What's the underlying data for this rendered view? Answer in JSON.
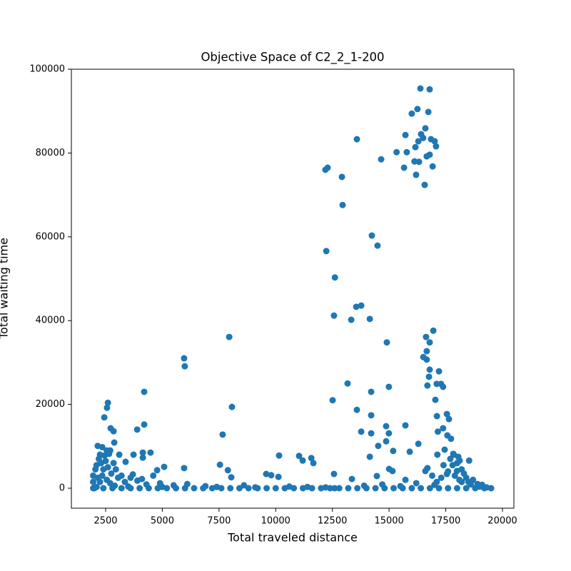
{
  "chart_data": {
    "type": "scatter",
    "title": "Objective Space of C2_2_1-200",
    "x_label": "Total traveled distance",
    "y_label": "Total waiting time",
    "color": "#1f77b4",
    "xlim": [
      989,
      20504
    ],
    "ylim": [
      -4770,
      100000
    ],
    "xticks": [
      2500,
      5000,
      7500,
      10000,
      12500,
      15000,
      17500,
      20000
    ],
    "yticks": [
      0,
      20000,
      40000,
      60000,
      80000,
      100000
    ],
    "x": [
      16380,
      16790,
      16250,
      16000,
      16730,
      16600,
      15720,
      16410,
      16500,
      16850,
      16290,
      17010,
      17070,
      16160,
      15330,
      15780,
      16660,
      16790,
      14650,
      16120,
      16320,
      16920,
      15660,
      16190,
      16570,
      13580,
      12290,
      12190,
      12920,
      12950,
      14240,
      14490,
      12230,
      12610,
      12570,
      13550,
      13770,
      13330,
      14150,
      14900,
      16630,
      16950,
      16790,
      16510,
      16660,
      16790,
      17200,
      17290,
      17100,
      17380,
      17040,
      14990,
      13170,
      12510,
      14210,
      13580,
      14210,
      14870,
      15720,
      13770,
      14210,
      14990,
      14520,
      14870,
      14150,
      15180,
      15910,
      16290,
      17110,
      17550,
      17640,
      17380,
      17570,
      17730,
      17150,
      17450,
      17830,
      18110,
      18530,
      17130,
      16690,
      16760,
      16660,
      5960,
      5990,
      7950,
      8070,
      7660,
      4200,
      4200,
      3890,
      2850,
      2720,
      2440,
      2600,
      2560,
      2880,
      2150,
      3730,
      4140,
      4480,
      4140,
      3100,
      3380,
      5080,
      4770,
      5960,
      7540,
      7890,
      8040,
      10150,
      11030,
      11190,
      11570,
      11660,
      9580,
      9800,
      10120,
      12570,
      13360,
      14460,
      15000,
      15150,
      15720,
      16600,
      16690,
      17550,
      17990,
      2000,
      2400,
      2800,
      3200,
      3600,
      4000,
      4400,
      4800,
      5200,
      5600,
      6000,
      6400,
      6800,
      7200,
      7600,
      8000,
      8400,
      8800,
      9200,
      9600,
      10000,
      10400,
      10800,
      11200,
      11600,
      12000,
      12400,
      12800,
      13200,
      13600,
      14000,
      14400,
      14800,
      15200,
      15600,
      16000,
      16400,
      16800,
      17200,
      17600,
      18000,
      18400,
      18800,
      19200,
      19500,
      2100,
      2900,
      3500,
      4300,
      5000,
      5500,
      6100,
      6900,
      7400,
      8600,
      9100,
      10600,
      11400,
      12200,
      13900,
      14700,
      15500,
      16200,
      17000,
      18200,
      18600,
      19000,
      19300,
      12600,
      1950,
      1950,
      1950,
      2050,
      2100,
      2200,
      2250,
      2300,
      2350,
      2400,
      2450,
      2500,
      2550,
      2600,
      2650,
      2700,
      2750,
      2850,
      2950,
      3050,
      3200,
      3350,
      3600,
      3700,
      3900,
      4100,
      4600,
      4900,
      2150,
      2250,
      2350,
      2550,
      2700,
      17700,
      17800,
      17900,
      18000,
      18100,
      18200,
      18300,
      18400,
      18500,
      17600,
      17400,
      17300,
      18700,
      18900,
      19100,
      17100,
      16900,
      17850,
      18050
    ],
    "values": [
      95400,
      95200,
      90500,
      89400,
      89800,
      85900,
      84300,
      84500,
      83600,
      83300,
      82800,
      82800,
      81600,
      81400,
      80200,
      80200,
      79200,
      79600,
      78500,
      78000,
      77900,
      76800,
      76500,
      74800,
      72400,
      83300,
      76500,
      76000,
      74300,
      67600,
      60300,
      57900,
      56600,
      50300,
      41200,
      43300,
      43600,
      40200,
      40400,
      34800,
      36100,
      37600,
      34800,
      31300,
      30700,
      28300,
      27900,
      24900,
      24900,
      24200,
      21100,
      24200,
      25000,
      21000,
      23000,
      18700,
      17400,
      14800,
      15000,
      13500,
      13100,
      13100,
      10100,
      11200,
      7500,
      8900,
      8700,
      10600,
      17200,
      17700,
      16500,
      14300,
      12600,
      11800,
      13500,
      9200,
      8200,
      6600,
      6600,
      8000,
      24500,
      26600,
      32700,
      31000,
      29100,
      36100,
      19400,
      12800,
      23000,
      15200,
      14000,
      13600,
      14300,
      16900,
      20400,
      19200,
      10900,
      10100,
      8000,
      8500,
      8500,
      7300,
      8000,
      6300,
      5100,
      4300,
      4800,
      5600,
      4300,
      2600,
      7800,
      7700,
      6600,
      7200,
      6000,
      3400,
      3100,
      2700,
      3400,
      2200,
      2900,
      4600,
      4100,
      2000,
      4100,
      4800,
      3400,
      4100,
      0,
      0,
      0,
      0,
      0,
      0,
      0,
      0,
      0,
      0,
      0,
      0,
      0,
      0,
      0,
      0,
      0,
      0,
      0,
      0,
      0,
      0,
      0,
      0,
      0,
      0,
      0,
      0,
      0,
      0,
      0,
      0,
      0,
      0,
      0,
      0,
      0,
      0,
      0,
      0,
      0,
      0,
      0,
      0,
      0,
      300,
      600,
      400,
      900,
      300,
      700,
      1000,
      500,
      300,
      700,
      200,
      400,
      300,
      200,
      600,
      900,
      500,
      1200,
      800,
      1500,
      900,
      400,
      200,
      0,
      0,
      1500,
      3000,
      4500,
      5500,
      7000,
      8000,
      6000,
      9800,
      4500,
      7800,
      6500,
      9000,
      5000,
      8200,
      9000,
      3500,
      6000,
      4500,
      2500,
      3000,
      1500,
      2500,
      3300,
      1800,
      2200,
      3000,
      1200,
      2500,
      1500,
      3000,
      2000,
      1200,
      7000,
      5500,
      3000,
      6000,
      2000,
      4500,
      3500,
      2500,
      1500,
      4000,
      5500,
      2500,
      2000,
      1000,
      800,
      1500,
      3000,
      8000,
      7500
    ]
  }
}
